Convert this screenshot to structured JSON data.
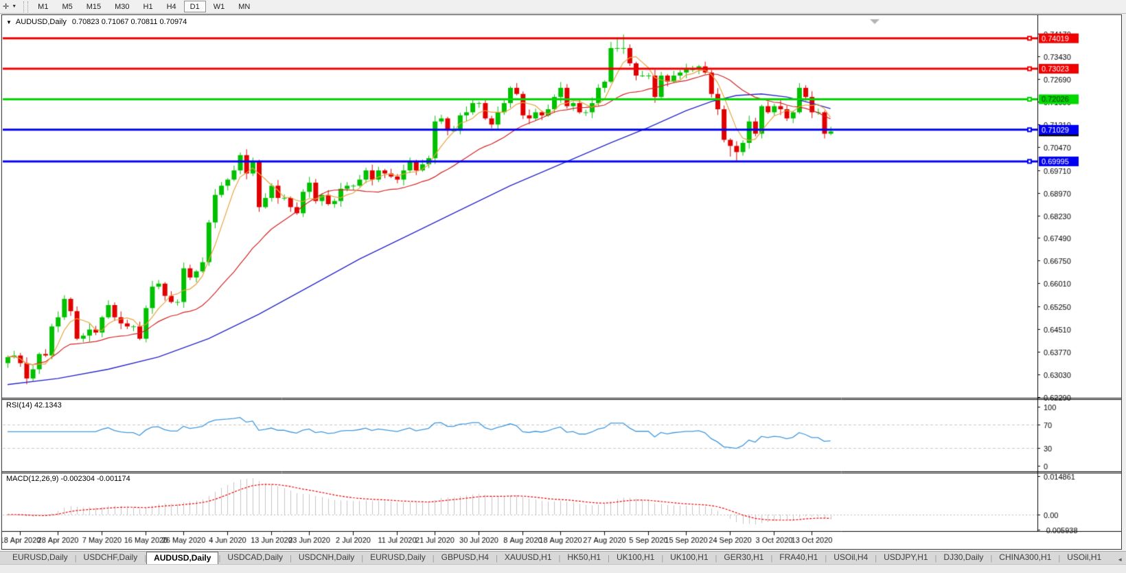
{
  "toolbar": {
    "cursor_tool_glyph": "✛",
    "dropdown_glyph": "▼",
    "timeframes": [
      {
        "label": "M1",
        "active": false
      },
      {
        "label": "M5",
        "active": false
      },
      {
        "label": "M15",
        "active": false
      },
      {
        "label": "M30",
        "active": false
      },
      {
        "label": "H1",
        "active": false
      },
      {
        "label": "H4",
        "active": false
      },
      {
        "label": "D1",
        "active": true
      },
      {
        "label": "W1",
        "active": false
      },
      {
        "label": "MN",
        "active": false
      }
    ]
  },
  "chart_window": {
    "collapse_glyph": "▼",
    "title": "AUDUSD,Daily",
    "ohlc_text": "0.70823 0.71067 0.70811 0.70974",
    "open": "0.70823",
    "high": "0.71067",
    "low": "0.70811",
    "close": "0.70974"
  },
  "indicators": {
    "rsi_label": "RSI(14) 42.1343",
    "macd_label": "MACD(12,26,9) -0.002304 -0.001174"
  },
  "colors": {
    "up_candle": "#00c000",
    "down_candle": "#e00000",
    "ma_fast": "#e8a33d",
    "ma_medium": "#d42020",
    "ma_slow": "#2424c8",
    "rsi_line": "#3e97de",
    "level_dash": "#c8c8c8",
    "macd_bar": "#c4c4c4",
    "macd_signal": "#f00000",
    "axis_text": "#000000",
    "frame": "#000000",
    "bid_badge_bg": "#000000",
    "bid_badge_fg": "#ffffff",
    "shift_triangle": "#b4b4b4"
  },
  "chart_data": [
    {
      "type": "candlestick",
      "title": "AUDUSD,Daily",
      "ohlc_display": {
        "open": 0.70823,
        "high": 0.71067,
        "low": 0.70811,
        "close": 0.70974
      },
      "ylim": [
        0.6229,
        0.7417
      ],
      "y_ticks": [
        "0.74170",
        "0.73430",
        "0.72690",
        "0.71950",
        "0.71210",
        "0.70470",
        "0.69710",
        "0.68970",
        "0.68230",
        "0.67490",
        "0.66750",
        "0.66010",
        "0.65250",
        "0.64510",
        "0.63770",
        "0.63030",
        "0.62290"
      ],
      "x_labels": [
        {
          "label": "18 Apr 2020",
          "i": 2
        },
        {
          "label": "28 Apr 2020",
          "i": 8
        },
        {
          "label": "7 May 2020",
          "i": 15
        },
        {
          "label": "16 May 2020",
          "i": 22
        },
        {
          "label": "26 May 2020",
          "i": 28
        },
        {
          "label": "4 Jun 2020",
          "i": 35
        },
        {
          "label": "13 Jun 2020",
          "i": 42
        },
        {
          "label": "23 Jun 2020",
          "i": 48
        },
        {
          "label": "2 Jul 2020",
          "i": 55
        },
        {
          "label": "11 Jul 2020",
          "i": 62
        },
        {
          "label": "21 Jul 2020",
          "i": 68
        },
        {
          "label": "30 Jul 2020",
          "i": 75
        },
        {
          "label": "8 Aug 2020",
          "i": 82
        },
        {
          "label": "18 Aug 2020",
          "i": 88
        },
        {
          "label": "27 Aug 2020",
          "i": 95
        },
        {
          "label": "5 Sep 2020",
          "i": 102
        },
        {
          "label": "15 Sep 2020",
          "i": 108
        },
        {
          "label": "24 Sep 2020",
          "i": 115
        },
        {
          "label": "3 Oct 2020",
          "i": 122
        },
        {
          "label": "13 Oct 2020",
          "i": 128
        }
      ],
      "open_first": 0.634,
      "closes": [
        0.636,
        0.6365,
        0.634,
        0.629,
        0.632,
        0.637,
        0.6365,
        0.646,
        0.649,
        0.655,
        0.651,
        0.642,
        0.643,
        0.645,
        0.644,
        0.649,
        0.653,
        0.649,
        0.647,
        0.646,
        0.646,
        0.642,
        0.652,
        0.659,
        0.66,
        0.656,
        0.654,
        0.654,
        0.665,
        0.662,
        0.664,
        0.667,
        0.68,
        0.689,
        0.692,
        0.694,
        0.697,
        0.702,
        0.696,
        0.7,
        0.685,
        0.688,
        0.692,
        0.688,
        0.688,
        0.685,
        0.683,
        0.69,
        0.693,
        0.687,
        0.689,
        0.686,
        0.687,
        0.691,
        0.692,
        0.692,
        0.694,
        0.697,
        0.694,
        0.697,
        0.696,
        0.695,
        0.694,
        0.697,
        0.7,
        0.697,
        0.699,
        0.701,
        0.713,
        0.714,
        0.71,
        0.71,
        0.715,
        0.716,
        0.719,
        0.719,
        0.714,
        0.712,
        0.716,
        0.719,
        0.724,
        0.722,
        0.715,
        0.714,
        0.716,
        0.715,
        0.717,
        0.721,
        0.724,
        0.718,
        0.719,
        0.716,
        0.716,
        0.719,
        0.724,
        0.726,
        0.737,
        0.737,
        0.737,
        0.732,
        0.728,
        0.728,
        0.728,
        0.721,
        0.728,
        0.726,
        0.728,
        0.729,
        0.73,
        0.73,
        0.731,
        0.729,
        0.722,
        0.717,
        0.707,
        0.705,
        0.703,
        0.706,
        0.713,
        0.709,
        0.718,
        0.716,
        0.718,
        0.717,
        0.714,
        0.716,
        0.724,
        0.721,
        0.716,
        0.716,
        0.709,
        0.70974
      ],
      "wick_overrides": {
        "96": {
          "h": 0.739
        },
        "97": {
          "h": 0.7405
        },
        "98": {
          "h": 0.7414
        },
        "115": {
          "l": 0.7015
        },
        "116": {
          "l": 0.7002
        }
      },
      "hlines": [
        {
          "value": 0.74019,
          "label": "0.74019",
          "color": "#f00000",
          "text_color": "#ffffff"
        },
        {
          "value": 0.73023,
          "label": "0.73023",
          "color": "#f00000",
          "text_color": "#ffffff"
        },
        {
          "value": 0.72026,
          "label": "0.72026",
          "color": "#00d800",
          "text_color": "#103010"
        },
        {
          "value": 0.71029,
          "label": "0.71029",
          "color": "#0000f0",
          "text_color": "#ffffff"
        },
        {
          "value": 0.69995,
          "label": "0.69995",
          "color": "#0000f0",
          "text_color": "#ffffff"
        }
      ],
      "bid_price": 0.70974,
      "ma": {
        "fast_period": 5,
        "medium_period": 20,
        "slow_waypoints": [
          [
            0,
            0.627
          ],
          [
            8,
            0.629
          ],
          [
            16,
            0.632
          ],
          [
            24,
            0.636
          ],
          [
            32,
            0.642
          ],
          [
            40,
            0.65
          ],
          [
            48,
            0.659
          ],
          [
            56,
            0.668
          ],
          [
            64,
            0.676
          ],
          [
            72,
            0.684
          ],
          [
            80,
            0.692
          ],
          [
            88,
            0.699
          ],
          [
            96,
            0.706
          ],
          [
            102,
            0.711
          ],
          [
            108,
            0.7165
          ],
          [
            112,
            0.7195
          ],
          [
            116,
            0.7215
          ],
          [
            120,
            0.722
          ],
          [
            124,
            0.721
          ],
          [
            128,
            0.719
          ],
          [
            131,
            0.7172
          ]
        ]
      }
    },
    {
      "type": "line",
      "name": "RSI",
      "period": 14,
      "last_value": 42.1343,
      "levels": [
        70,
        30
      ],
      "y_ticks": [
        "100",
        "70",
        "30",
        "0"
      ],
      "ylim": [
        0,
        100
      ]
    },
    {
      "type": "bar",
      "name": "MACD",
      "params": [
        12,
        26,
        9
      ],
      "macd_value": -0.002304,
      "signal_value": -0.001174,
      "y_ticks": [
        "0.014861",
        "0.00",
        "-0.005938"
      ],
      "ylim": [
        -0.0066,
        0.0155
      ]
    }
  ],
  "tabs": {
    "items": [
      {
        "label": "EURUSD,Daily",
        "active": false
      },
      {
        "label": "USDCHF,Daily",
        "active": false
      },
      {
        "label": "AUDUSD,Daily",
        "active": true
      },
      {
        "label": "USDCAD,Daily",
        "active": false
      },
      {
        "label": "USDCNH,Daily",
        "active": false
      },
      {
        "label": "EURUSD,Daily",
        "active": false
      },
      {
        "label": "GBPUSD,H4",
        "active": false
      },
      {
        "label": "XAUUSD,H1",
        "active": false
      },
      {
        "label": "HK50,H1",
        "active": false
      },
      {
        "label": "UK100,H1",
        "active": false
      },
      {
        "label": "UK100,H1",
        "active": false
      },
      {
        "label": "GER30,H1",
        "active": false
      },
      {
        "label": "FRA40,H1",
        "active": false
      },
      {
        "label": "USOil,H4",
        "active": false
      },
      {
        "label": "USDJPY,H1",
        "active": false
      },
      {
        "label": "DJ30,Daily",
        "active": false
      },
      {
        "label": "CHINA300,H1",
        "active": false
      },
      {
        "label": "USOil,H1",
        "active": false
      }
    ],
    "nav_left": "◄",
    "nav_right": "►"
  }
}
